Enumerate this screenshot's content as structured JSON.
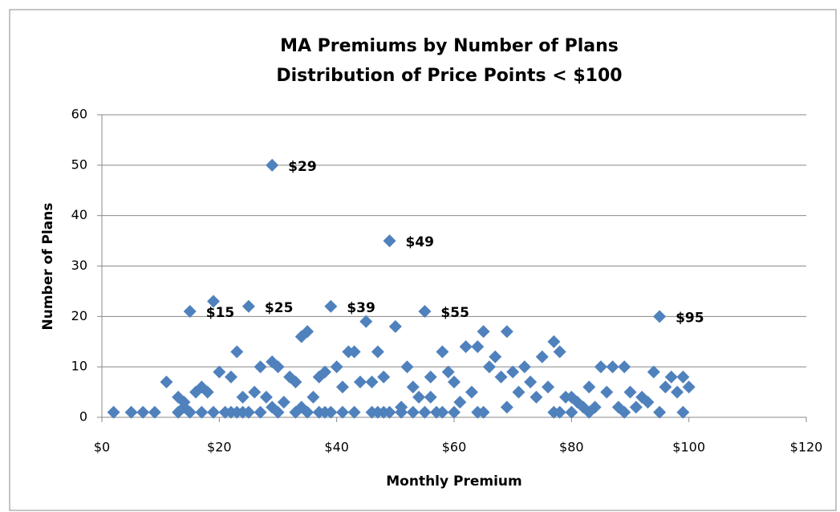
{
  "chart_data": {
    "type": "scatter",
    "title": "MA Premiums by Number of Plans",
    "subtitle": "Distribution of Price Points < $100",
    "x_label": "Monthly Premium",
    "y_label": "Number of Plans",
    "color": "#4f81bd",
    "grid": true,
    "xlim": [
      0,
      120
    ],
    "xticks": [
      {
        "value": 0,
        "label": "$0"
      },
      {
        "value": 20,
        "label": "$20"
      },
      {
        "value": 40,
        "label": "$40"
      },
      {
        "value": 60,
        "label": "$60"
      },
      {
        "value": 80,
        "label": "$80"
      },
      {
        "value": 100,
        "label": "$100"
      },
      {
        "value": 120,
        "label": "$120"
      }
    ],
    "ylim": [
      0,
      60
    ],
    "yticks": [
      0,
      10,
      20,
      30,
      40,
      50,
      60
    ],
    "x": [
      2,
      5,
      7,
      9,
      11,
      13,
      13,
      14,
      14,
      15,
      15,
      16,
      17,
      17,
      18,
      19,
      19,
      20,
      21,
      22,
      22,
      23,
      23,
      24,
      24,
      25,
      25,
      26,
      27,
      27,
      28,
      29,
      29,
      29,
      30,
      30,
      31,
      32,
      33,
      33,
      34,
      34,
      35,
      35,
      36,
      37,
      37,
      38,
      38,
      39,
      39,
      40,
      41,
      41,
      42,
      43,
      43,
      44,
      45,
      46,
      46,
      47,
      47,
      48,
      48,
      49,
      49,
      50,
      51,
      51,
      52,
      53,
      53,
      54,
      55,
      55,
      56,
      56,
      57,
      58,
      58,
      59,
      60,
      60,
      61,
      62,
      63,
      64,
      64,
      65,
      65,
      66,
      67,
      68,
      69,
      69,
      70,
      71,
      72,
      73,
      74,
      75,
      76,
      77,
      77,
      78,
      78,
      79,
      80,
      80,
      81,
      82,
      83,
      83,
      84,
      85,
      86,
      87,
      88,
      89,
      89,
      90,
      91,
      92,
      93,
      94,
      95,
      95,
      96,
      97,
      98,
      99,
      99,
      100
    ],
    "values": [
      1,
      1,
      1,
      1,
      7,
      4,
      1,
      2,
      3,
      1,
      21,
      5,
      1,
      6,
      5,
      23,
      1,
      9,
      1,
      8,
      1,
      13,
      1,
      4,
      1,
      22,
      1,
      5,
      10,
      1,
      4,
      50,
      11,
      2,
      1,
      10,
      3,
      8,
      7,
      1,
      2,
      16,
      17,
      1,
      4,
      8,
      1,
      9,
      1,
      22,
      1,
      10,
      6,
      1,
      13,
      13,
      1,
      7,
      19,
      1,
      7,
      13,
      1,
      8,
      1,
      35,
      1,
      18,
      1,
      2,
      10,
      6,
      1,
      4,
      21,
      1,
      4,
      8,
      1,
      13,
      1,
      9,
      7,
      1,
      3,
      14,
      5,
      14,
      1,
      17,
      1,
      10,
      12,
      8,
      17,
      2,
      9,
      5,
      10,
      7,
      4,
      12,
      6,
      1,
      15,
      13,
      1,
      4,
      4,
      1,
      3,
      2,
      6,
      1,
      2,
      10,
      5,
      10,
      2,
      10,
      1,
      5,
      2,
      4,
      3,
      9,
      20,
      1,
      6,
      8,
      5,
      8,
      1,
      6
    ],
    "annotations": [
      {
        "text": "$29",
        "x": 29,
        "y": 50
      },
      {
        "text": "$49",
        "x": 49,
        "y": 35
      },
      {
        "text": "$15",
        "x": 15,
        "y": 21
      },
      {
        "text": "$25",
        "x": 25,
        "y": 22
      },
      {
        "text": "$39",
        "x": 39,
        "y": 22
      },
      {
        "text": "$55",
        "x": 55,
        "y": 21
      },
      {
        "text": "$95",
        "x": 95,
        "y": 20
      }
    ]
  }
}
